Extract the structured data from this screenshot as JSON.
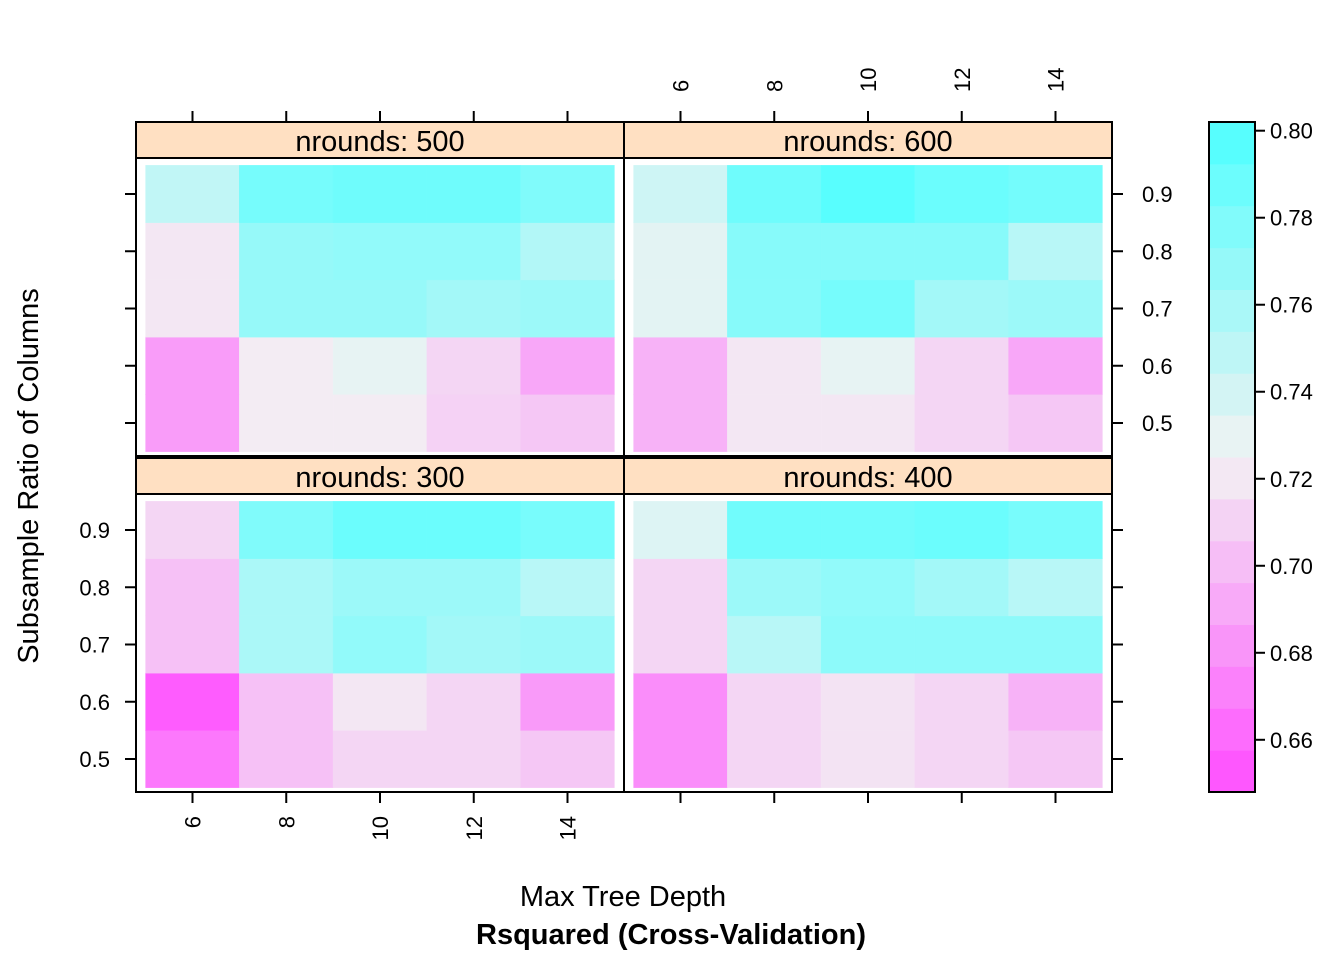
{
  "chart_data": {
    "type": "heatmap",
    "title": "",
    "subtitle": "Rsquared (Cross-Validation)",
    "xlabel": "Max Tree Depth",
    "ylabel": "Subsample Ratio of Columns",
    "x": [
      6,
      8,
      10,
      12,
      14
    ],
    "y": [
      0.5,
      0.6,
      0.7,
      0.8,
      0.9
    ],
    "x_tick_labels": [
      "6",
      "8",
      "10",
      "12",
      "14"
    ],
    "y_tick_labels": [
      "0.5",
      "0.6",
      "0.7",
      "0.8",
      "0.9"
    ],
    "colorbar": {
      "min": 0.648,
      "max": 0.802,
      "ticks": [
        0.66,
        0.68,
        0.7,
        0.72,
        0.74,
        0.76,
        0.78,
        0.8
      ],
      "tick_labels": [
        "0.66",
        "0.68",
        "0.70",
        "0.72",
        "0.74",
        "0.76",
        "0.78",
        "0.80"
      ],
      "low_color": "#ff4dff",
      "mid_color": "#f2f2f2",
      "high_color": "#4dffff"
    },
    "strip_color": "#ffe0c2",
    "panels": [
      {
        "label": "nrounds: 500",
        "z": [
          [
            0.685,
            0.722,
            0.722,
            0.71,
            0.705
          ],
          [
            0.685,
            0.722,
            0.73,
            0.712,
            0.69
          ],
          [
            0.72,
            0.768,
            0.768,
            0.762,
            0.765
          ],
          [
            0.72,
            0.768,
            0.77,
            0.77,
            0.755
          ],
          [
            0.748,
            0.783,
            0.786,
            0.786,
            0.778
          ]
        ]
      },
      {
        "label": "nrounds: 600",
        "z": [
          [
            0.695,
            0.72,
            0.72,
            0.712,
            0.705
          ],
          [
            0.695,
            0.72,
            0.73,
            0.712,
            0.69
          ],
          [
            0.732,
            0.775,
            0.783,
            0.762,
            0.765
          ],
          [
            0.732,
            0.775,
            0.775,
            0.775,
            0.752
          ],
          [
            0.742,
            0.786,
            0.797,
            0.788,
            0.784
          ]
        ]
      },
      {
        "label": "nrounds: 300",
        "z": [
          [
            0.668,
            0.702,
            0.712,
            0.712,
            0.705
          ],
          [
            0.655,
            0.702,
            0.72,
            0.712,
            0.684
          ],
          [
            0.702,
            0.758,
            0.77,
            0.762,
            0.765
          ],
          [
            0.702,
            0.758,
            0.765,
            0.765,
            0.752
          ],
          [
            0.712,
            0.778,
            0.788,
            0.788,
            0.782
          ]
        ]
      },
      {
        "label": "nrounds: 400",
        "z": [
          [
            0.678,
            0.712,
            0.718,
            0.712,
            0.705
          ],
          [
            0.678,
            0.712,
            0.718,
            0.712,
            0.695
          ],
          [
            0.712,
            0.752,
            0.772,
            0.772,
            0.772
          ],
          [
            0.712,
            0.765,
            0.77,
            0.762,
            0.752
          ],
          [
            0.735,
            0.785,
            0.785,
            0.788,
            0.782
          ]
        ]
      }
    ]
  }
}
